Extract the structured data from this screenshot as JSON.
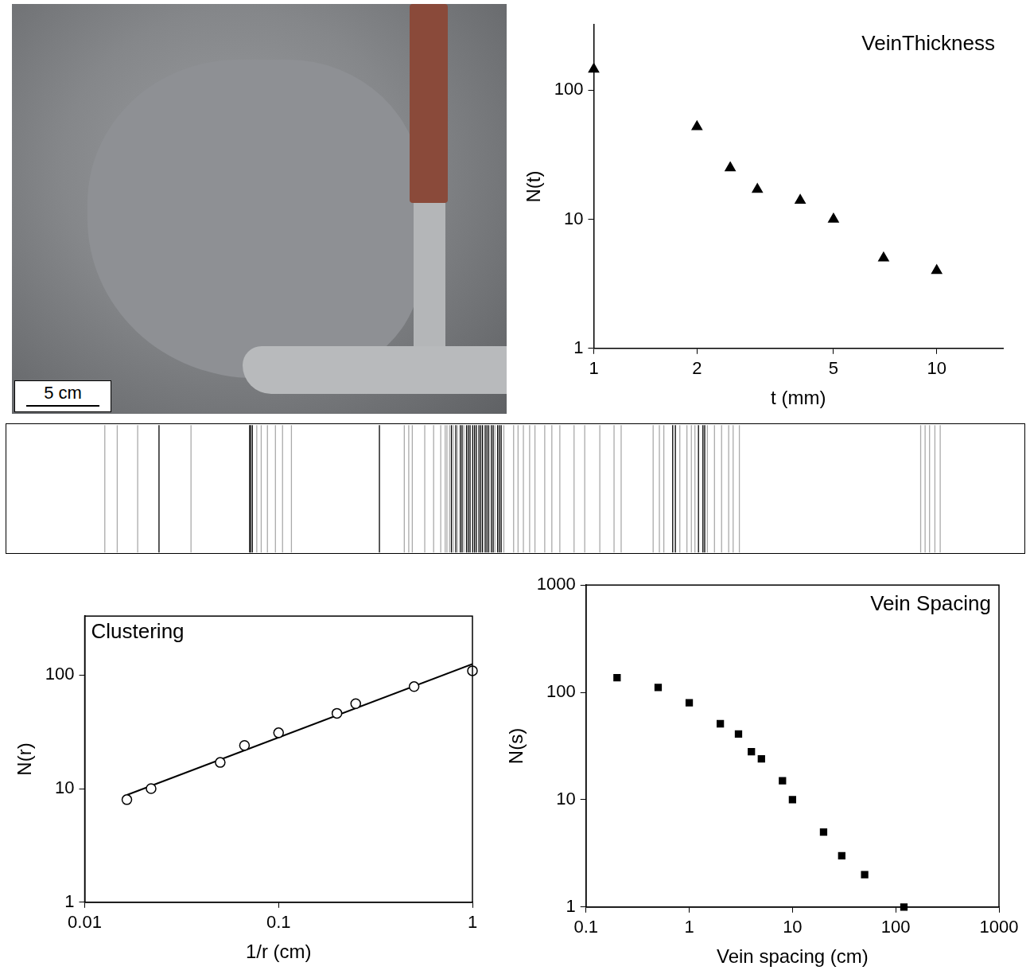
{
  "photo": {
    "scale_bar_label": "5 cm"
  },
  "chart_data": [
    {
      "type": "scatter",
      "title": "VeinThickness",
      "x_label": "t (mm)",
      "y_label": "N(t)",
      "log": true,
      "grid": false,
      "xlim": [
        1,
        15.6
      ],
      "ylim": [
        1,
        320
      ],
      "xticks": [
        1,
        2,
        5,
        10
      ],
      "yticks": [
        1,
        10,
        100
      ],
      "series": [
        {
          "marker": "triangle",
          "color": "#000000",
          "x": [
            1,
            2,
            2.5,
            3,
            4,
            5,
            7,
            10
          ],
          "values": [
            145,
            52,
            25,
            17,
            14,
            10,
            5,
            4
          ]
        }
      ]
    },
    {
      "type": "strip",
      "tick_labels": false,
      "xlim": [
        0,
        100
      ],
      "x": [
        3.8,
        5.2,
        7.5,
        9.9,
        13.5,
        20.1,
        20.2,
        20.4,
        20.9,
        21.4,
        22.1,
        23,
        23.8,
        24.8,
        34.7,
        37.5,
        38,
        38.4,
        39.8,
        40.8,
        41.6,
        42.1,
        42.3,
        42.6,
        42.8,
        43,
        43.3,
        43.5,
        43.8,
        44,
        44.2,
        44.5,
        44.7,
        44.9,
        45.2,
        45.4,
        45.6,
        45.9,
        46.1,
        46.3,
        46.6,
        46.8,
        47,
        47.3,
        47.5,
        47.7,
        48,
        48.2,
        48.4,
        48.7,
        49.8,
        50.3,
        50.9,
        51.6,
        52.2,
        53.3,
        54.1,
        55,
        56.6,
        57.8,
        59.5,
        61.1,
        61.9,
        65.5,
        66.2,
        66.7,
        67.7,
        68,
        68.5,
        69.3,
        69.8,
        70.2,
        70.6,
        71.1,
        71.3,
        71.6,
        72.4,
        73.2,
        74,
        74.5,
        75.2,
        95.6,
        96.1,
        96.6,
        97.2,
        97.8
      ],
      "colors": [
        "#aaaaaa",
        "#aaaaaa",
        "#aaaaaa",
        "#000000",
        "#aaaaaa",
        "#000000",
        "#000000",
        "#000000",
        "#aaaaaa",
        "#aaaaaa",
        "#aaaaaa",
        "#aaaaaa",
        "#aaaaaa",
        "#aaaaaa",
        "#000000",
        "#aaaaaa",
        "#aaaaaa",
        "#aaaaaa",
        "#aaaaaa",
        "#aaaaaa",
        "#aaaaaa",
        "#aaaaaa",
        "#aaaaaa",
        "#aaaaaa",
        "#000000",
        "#aaaaaa",
        "#000000",
        "#aaaaaa",
        "#000000",
        "#000000",
        "#aaaaaa",
        "#000000",
        "#000000",
        "#000000",
        "#000000",
        "#000000",
        "#000000",
        "#000000",
        "#000000",
        "#000000",
        "#000000",
        "#000000",
        "#000000",
        "#000000",
        "#000000",
        "#aaaaaa",
        "#000000",
        "#000000",
        "#000000",
        "#aaaaaa",
        "#aaaaaa",
        "#aaaaaa",
        "#aaaaaa",
        "#aaaaaa",
        "#aaaaaa",
        "#aaaaaa",
        "#aaaaaa",
        "#aaaaaa",
        "#aaaaaa",
        "#aaaaaa",
        "#aaaaaa",
        "#aaaaaa",
        "#aaaaaa",
        "#aaaaaa",
        "#aaaaaa",
        "#aaaaaa",
        "#000000",
        "#000000",
        "#aaaaaa",
        "#aaaaaa",
        "#aaaaaa",
        "#aaaaaa",
        "#000000",
        "#000000",
        "#000000",
        "#aaaaaa",
        "#aaaaaa",
        "#aaaaaa",
        "#aaaaaa",
        "#aaaaaa",
        "#aaaaaa",
        "#aaaaaa",
        "#aaaaaa",
        "#aaaaaa",
        "#aaaaaa",
        "#aaaaaa"
      ]
    },
    {
      "type": "scatter",
      "title": "Clustering",
      "x_label": "1/r (cm)",
      "y_label": "N(r)",
      "log": true,
      "grid": false,
      "xlim": [
        0.01,
        1
      ],
      "ylim": [
        1,
        330
      ],
      "xticks": [
        0.01,
        0.1,
        1
      ],
      "yticks": [
        1,
        10,
        100
      ],
      "series": [
        {
          "type": "scatter",
          "marker": "open_circle",
          "color": "#000000",
          "x": [
            0.0165,
            0.022,
            0.05,
            0.0667,
            0.1,
            0.2,
            0.25,
            0.5,
            1
          ],
          "values": [
            8,
            10,
            17,
            24,
            31,
            46,
            56,
            79,
            109
          ]
        },
        {
          "type": "line",
          "line_style": "solid",
          "color": "#000000",
          "x": [
            0.0165,
            1
          ],
          "values": [
            8.8,
            125
          ]
        }
      ]
    },
    {
      "type": "scatter",
      "title": "Vein Spacing",
      "x_label": "Vein spacing (cm)",
      "y_label": "N(s)",
      "log": true,
      "grid": false,
      "xlim": [
        0.1,
        1000
      ],
      "ylim": [
        1,
        1000
      ],
      "xticks": [
        0.1,
        1,
        10,
        100,
        1000
      ],
      "yticks": [
        1,
        10,
        100,
        1000
      ],
      "series": [
        {
          "marker": "square",
          "color": "#000000",
          "x": [
            0.2,
            0.5,
            1,
            2,
            3,
            4,
            5,
            8,
            10,
            20,
            30,
            50,
            120
          ],
          "values": [
            137,
            111,
            80,
            51,
            41,
            28,
            24,
            15,
            10,
            5,
            3,
            2,
            1
          ]
        }
      ]
    }
  ]
}
